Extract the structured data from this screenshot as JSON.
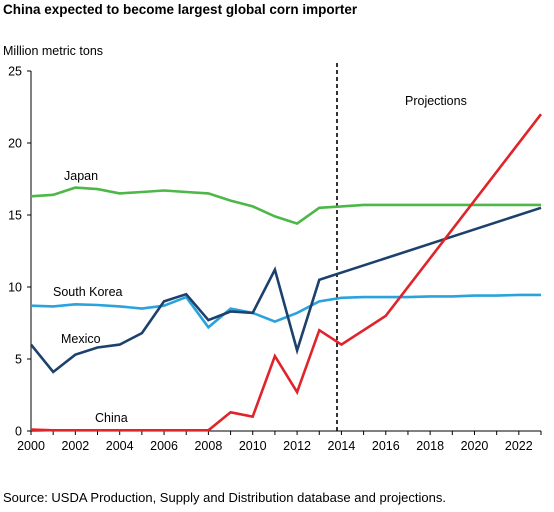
{
  "chart_data": {
    "type": "line",
    "title": "China expected to become largest global corn importer",
    "ylabel": "Million metric tons",
    "xlabel": "",
    "source": "Source: USDA Production, Supply and Distribution database and projections.",
    "ylim": [
      0,
      25
    ],
    "xlim": [
      2000,
      2023
    ],
    "y_ticks": [
      "0",
      "5",
      "10",
      "15",
      "20",
      "25"
    ],
    "x_ticks": [
      "2000",
      "2002",
      "2004",
      "2006",
      "2008",
      "2010",
      "2012",
      "2014",
      "2016",
      "2018",
      "2020",
      "2022"
    ],
    "grid": false,
    "projection_marker": {
      "x": 2013.8,
      "label": "Projections"
    },
    "x": [
      2000,
      2001,
      2002,
      2003,
      2004,
      2005,
      2006,
      2007,
      2008,
      2009,
      2010,
      2011,
      2012,
      2013,
      2014,
      2015,
      2016,
      2017,
      2018,
      2019,
      2020,
      2021,
      2022,
      2023
    ],
    "series": [
      {
        "name": "Japan",
        "color": "#4db848",
        "values": [
          16.3,
          16.4,
          16.9,
          16.8,
          16.5,
          16.6,
          16.7,
          16.6,
          16.5,
          16.0,
          15.6,
          14.9,
          14.4,
          15.5,
          15.6,
          15.7,
          15.7,
          15.7,
          15.7,
          15.7,
          15.7,
          15.7,
          15.7,
          15.7
        ]
      },
      {
        "name": "South Korea",
        "color": "#2aa3dc",
        "values": [
          8.7,
          8.65,
          8.8,
          8.75,
          8.65,
          8.5,
          8.7,
          9.3,
          7.2,
          8.5,
          8.2,
          7.6,
          8.2,
          9.0,
          9.25,
          9.3,
          9.3,
          9.3,
          9.35,
          9.35,
          9.4,
          9.4,
          9.45,
          9.45
        ]
      },
      {
        "name": "Mexico",
        "color": "#1d416d",
        "values": [
          6.0,
          4.1,
          5.3,
          5.8,
          6.0,
          6.8,
          9.0,
          9.5,
          7.7,
          8.3,
          8.2,
          11.2,
          5.6,
          10.5,
          null,
          null,
          null,
          null,
          null,
          null,
          null,
          null,
          null,
          15.5
        ]
      },
      {
        "name": "China",
        "color": "#e0242b",
        "values": [
          0.1,
          0.05,
          0.05,
          0.05,
          0.05,
          0.05,
          0.05,
          0.05,
          0.05,
          1.3,
          1.0,
          5.2,
          2.7,
          7.0,
          6.0,
          null,
          8.0,
          null,
          null,
          null,
          null,
          null,
          null,
          22.0
        ]
      }
    ]
  }
}
